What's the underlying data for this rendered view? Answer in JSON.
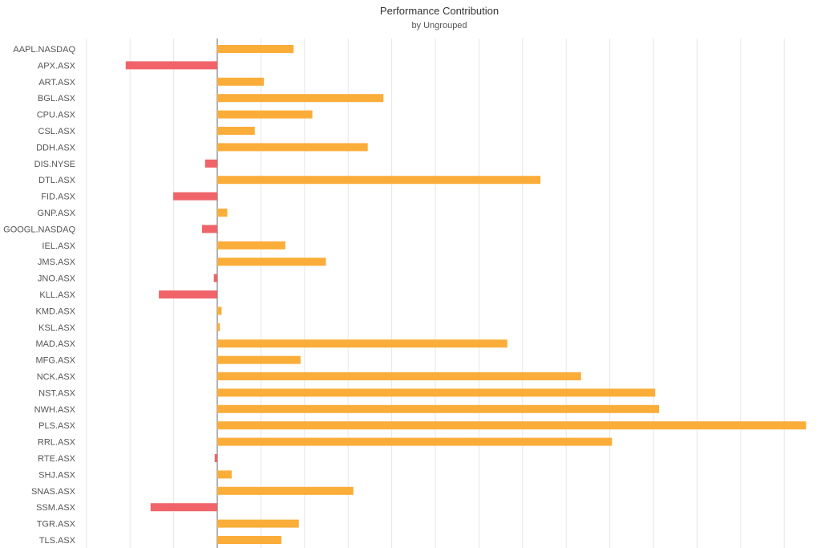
{
  "chart_data": {
    "type": "bar",
    "orientation": "horizontal",
    "title": "Performance Contribution",
    "subtitle": "by Ungrouped",
    "xlabel": "",
    "ylabel": "",
    "grid": true,
    "legend": "none",
    "xlim": [
      -30,
      135
    ],
    "categories": [
      "AAPL.NASDAQ",
      "APX.ASX",
      "ART.ASX",
      "BGL.ASX",
      "CPU.ASX",
      "CSL.ASX",
      "DDH.ASX",
      "DIS.NYSE",
      "DTL.ASX",
      "FID.ASX",
      "GNP.ASX",
      "GOOGL.NASDAQ",
      "IEL.ASX",
      "JMS.ASX",
      "JNO.ASX",
      "KLL.ASX",
      "KMD.ASX",
      "KSL.ASX",
      "MAD.ASX",
      "MFG.ASX",
      "NCK.ASX",
      "NST.ASX",
      "NWH.ASX",
      "PLS.ASX",
      "RRL.ASX",
      "RTE.ASX",
      "SHJ.ASX",
      "SNAS.ASX",
      "SSM.ASX",
      "TGR.ASX",
      "TLS.ASX"
    ],
    "values": [
      17.5,
      -21.0,
      10.7,
      38.1,
      21.8,
      8.6,
      34.5,
      -2.8,
      74.1,
      -10.1,
      2.3,
      -3.5,
      15.6,
      24.9,
      -0.8,
      -13.4,
      1.0,
      0.6,
      66.5,
      19.1,
      83.4,
      100.4,
      101.3,
      135.0,
      90.5,
      -0.6,
      3.3,
      31.2,
      -15.3,
      18.7,
      14.7
    ],
    "colors": {
      "positive": "#fbad3a",
      "negative": "#f06469",
      "grid": "#e6e6e6",
      "zero_line": "#999999"
    }
  }
}
